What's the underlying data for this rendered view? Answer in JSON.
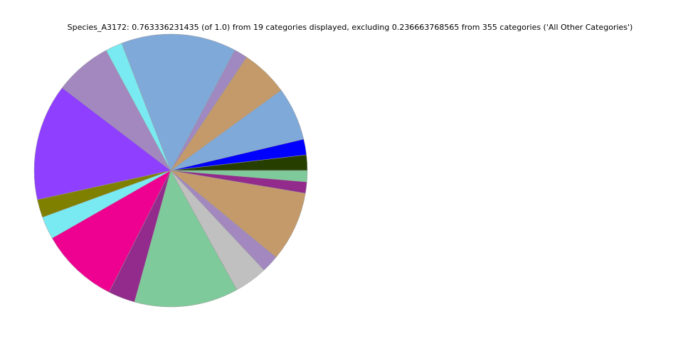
{
  "chart_data": {
    "type": "pie",
    "title": "Species_A3172: 0.763336231435 (of 1.0) from 19 categories displayed, excluding 0.236663768565 from 355 categories ('All Other Categories')",
    "values": [
      0.014,
      0.0142,
      0.0483,
      0.0428,
      0.0121,
      0.1041,
      0.0153,
      0.0517,
      0.1054,
      0.0163,
      0.0206,
      0.0708,
      0.0242,
      0.0941,
      0.0299,
      0.0157,
      0.0634,
      0.0102,
      0.0102
    ],
    "colors": [
      "#263f00",
      "#0000ff",
      "#7fa9d9",
      "#c49a6a",
      "#a088c0",
      "#7fa9d9",
      "#7aeaf2",
      "#a288bf",
      "#8f3fff",
      "#808000",
      "#7aeaf2",
      "#ee0090",
      "#922b8c",
      "#7fca9a",
      "#c0c0c0",
      "#a288bf",
      "#c49a6a",
      "#922b8c",
      "#7fca9a"
    ]
  }
}
